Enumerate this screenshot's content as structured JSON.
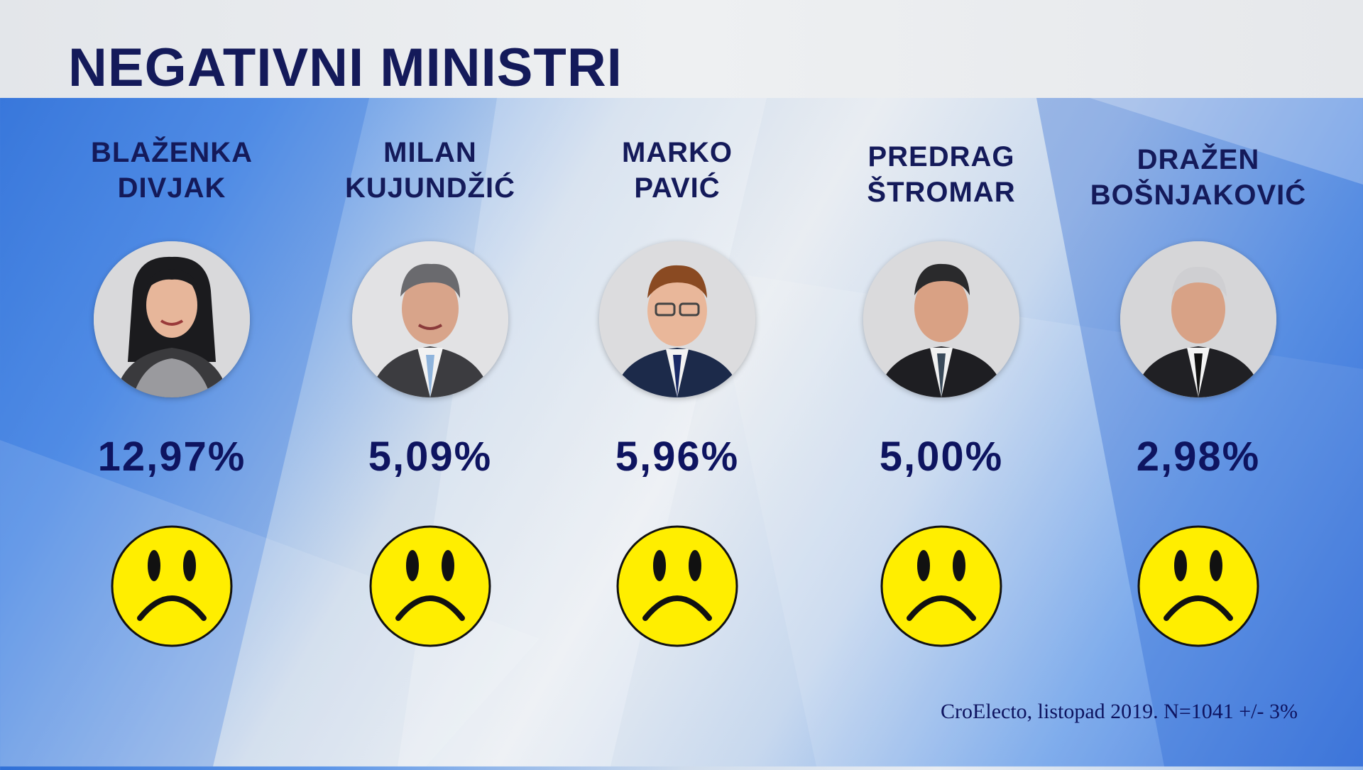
{
  "title": "NEGATIVNI MINISTRI",
  "ministers": [
    {
      "name_line1": "BLAŽENKA",
      "name_line2": "DIVJAK",
      "percent": "12,97%",
      "mood_icon": "sad-face-icon"
    },
    {
      "name_line1": "MILAN",
      "name_line2": "KUJUNDŽIĆ",
      "percent": "5,09%",
      "mood_icon": "sad-face-icon"
    },
    {
      "name_line1": "MARKO",
      "name_line2": "PAVIĆ",
      "percent": "5,96%",
      "mood_icon": "sad-face-icon"
    },
    {
      "name_line1": "PREDRAG",
      "name_line2": "ŠTROMAR",
      "percent": "5,00%",
      "mood_icon": "sad-face-icon"
    },
    {
      "name_line1": "DRAŽEN",
      "name_line2": "BOŠNJAKOVIĆ",
      "percent": "2,98%",
      "mood_icon": "sad-face-icon"
    }
  ],
  "source": "CroElecto, listopad 2019. N=1041 +/- 3%",
  "colors": {
    "text_primary": "#141a5a",
    "smiley_fill": "#ffee00",
    "background_blue": "#2f6fd6"
  }
}
